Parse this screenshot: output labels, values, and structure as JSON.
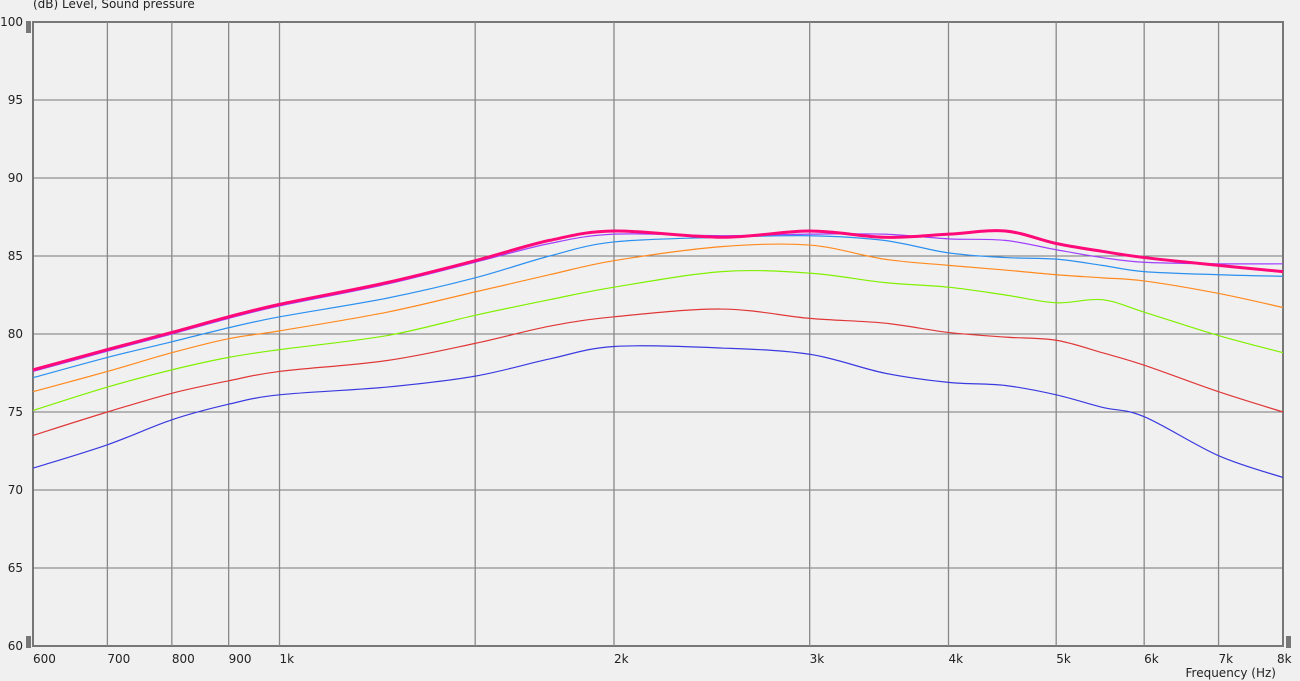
{
  "chart_data": {
    "type": "line",
    "title": "(dB)  Level, Sound pressure",
    "ylabel": "",
    "xlabel": "Frequency  (Hz)",
    "x_scale": "log",
    "xlim": [
      600,
      8000
    ],
    "ylim": [
      60,
      100
    ],
    "grid": true,
    "y_ticks": [
      100,
      95,
      90,
      85,
      80,
      75,
      70,
      65,
      60
    ],
    "x_ticks": [
      {
        "value": 600,
        "label": "600"
      },
      {
        "value": 700,
        "label": "700"
      },
      {
        "value": 800,
        "label": "800"
      },
      {
        "value": 900,
        "label": "900"
      },
      {
        "value": 1000,
        "label": "1k"
      },
      {
        "value": 1500,
        "label": ""
      },
      {
        "value": 2000,
        "label": "2k"
      },
      {
        "value": 3000,
        "label": "3k"
      },
      {
        "value": 4000,
        "label": "4k"
      },
      {
        "value": 5000,
        "label": "5k"
      },
      {
        "value": 6000,
        "label": "6k"
      },
      {
        "value": 7000,
        "label": "7k"
      },
      {
        "value": 8000,
        "label": "8k"
      }
    ],
    "x": [
      600,
      700,
      800,
      900,
      1000,
      1250,
      1500,
      1750,
      2000,
      2500,
      3000,
      3500,
      4000,
      4500,
      5000,
      5500,
      6000,
      7000,
      8000
    ],
    "series": [
      {
        "color": "#3a3ae0",
        "width": 1.2,
        "values": [
          71.4,
          72.9,
          74.5,
          75.5,
          76.1,
          76.6,
          77.3,
          78.4,
          79.2,
          79.1,
          78.7,
          77.5,
          76.9,
          76.7,
          76.1,
          75.3,
          74.7,
          72.2,
          70.8
        ]
      },
      {
        "color": "#e03838",
        "width": 1.2,
        "values": [
          73.5,
          75.0,
          76.2,
          77.0,
          77.6,
          78.3,
          79.4,
          80.5,
          81.1,
          81.6,
          81.0,
          80.7,
          80.1,
          79.8,
          79.6,
          78.8,
          78.0,
          76.3,
          75.0
        ]
      },
      {
        "color": "#80f000",
        "width": 1.2,
        "values": [
          75.1,
          76.6,
          77.7,
          78.5,
          79.0,
          79.9,
          81.2,
          82.2,
          83.0,
          84.0,
          83.9,
          83.3,
          83.0,
          82.5,
          82.0,
          82.2,
          81.4,
          79.9,
          78.8
        ]
      },
      {
        "color": "#ff8a20",
        "width": 1.2,
        "values": [
          76.3,
          77.6,
          78.8,
          79.7,
          80.2,
          81.4,
          82.7,
          83.8,
          84.7,
          85.6,
          85.7,
          84.8,
          84.4,
          84.1,
          83.8,
          83.6,
          83.4,
          82.6,
          81.7
        ]
      },
      {
        "color": "#2b90f0",
        "width": 1.2,
        "values": [
          77.2,
          78.5,
          79.5,
          80.4,
          81.1,
          82.3,
          83.6,
          85.0,
          85.9,
          86.2,
          86.3,
          86.0,
          85.2,
          84.9,
          84.8,
          84.4,
          84.0,
          83.8,
          83.7
        ]
      },
      {
        "color": "#a040ff",
        "width": 1.2,
        "values": [
          77.6,
          78.9,
          80.0,
          81.0,
          81.8,
          83.2,
          84.6,
          85.8,
          86.4,
          86.3,
          86.4,
          86.4,
          86.1,
          86.0,
          85.4,
          84.9,
          84.6,
          84.5,
          84.5
        ]
      },
      {
        "color": "#ff0a78",
        "width": 3,
        "values": [
          77.7,
          79.0,
          80.1,
          81.1,
          81.9,
          83.3,
          84.7,
          86.0,
          86.6,
          86.2,
          86.6,
          86.2,
          86.4,
          86.6,
          85.8,
          85.3,
          84.9,
          84.4,
          84.0
        ]
      }
    ]
  }
}
